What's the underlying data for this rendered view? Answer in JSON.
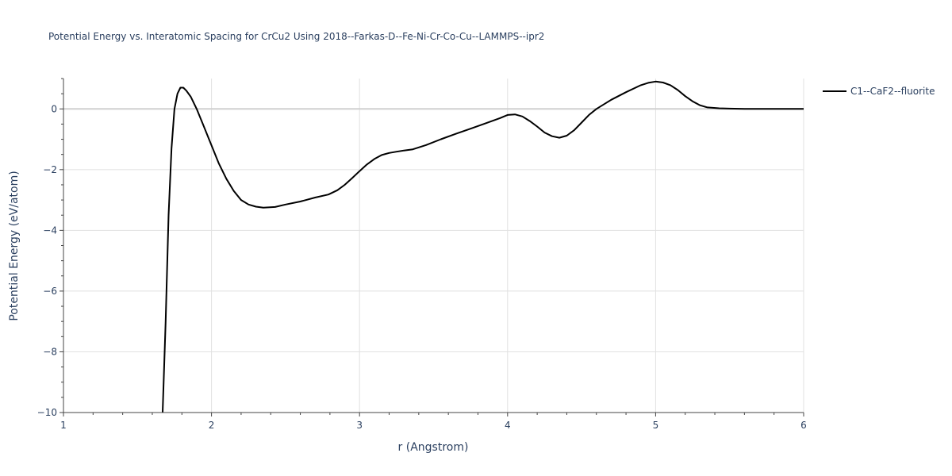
{
  "chart_data": {
    "type": "line",
    "title": "Potential Energy vs. Interatomic Spacing for CrCu2 Using 2018--Farkas-D--Fe-Ni-Cr-Co-Cu--LAMMPS--ipr2",
    "xlabel": "r (Angstrom)",
    "ylabel": "Potential Energy (eV/atom)",
    "xlim": [
      1,
      6
    ],
    "ylim": [
      -10,
      1
    ],
    "xticks": [
      1,
      2,
      3,
      4,
      5,
      6
    ],
    "xtick_labels": [
      "1",
      "2",
      "3",
      "4",
      "5",
      "6"
    ],
    "yticks": [
      -10,
      -8,
      -6,
      -4,
      -2,
      0
    ],
    "ytick_labels": [
      "−10",
      "−8",
      "−6",
      "−4",
      "−2",
      "0"
    ],
    "grid": true,
    "legend_position": "top-right",
    "series": [
      {
        "name": "C1--CaF2--fluorite",
        "color": "#000000",
        "x": [
          1.67,
          1.69,
          1.71,
          1.73,
          1.75,
          1.77,
          1.79,
          1.81,
          1.83,
          1.86,
          1.9,
          1.95,
          2.0,
          2.05,
          2.1,
          2.15,
          2.2,
          2.25,
          2.3,
          2.35,
          2.43,
          2.5,
          2.6,
          2.7,
          2.79,
          2.85,
          2.9,
          2.95,
          3.0,
          3.05,
          3.1,
          3.15,
          3.2,
          3.25,
          3.3,
          3.36,
          3.45,
          3.55,
          3.65,
          3.75,
          3.85,
          3.95,
          4.0,
          4.05,
          4.1,
          4.15,
          4.2,
          4.25,
          4.3,
          4.35,
          4.4,
          4.45,
          4.5,
          4.55,
          4.6,
          4.7,
          4.8,
          4.9,
          4.95,
          5.0,
          5.05,
          5.1,
          5.15,
          5.2,
          5.25,
          5.3,
          5.35,
          5.43,
          5.5,
          5.6,
          5.7,
          5.8,
          5.9,
          6.0
        ],
        "y": [
          -10.0,
          -7.0,
          -3.5,
          -1.3,
          0.0,
          0.5,
          0.7,
          0.7,
          0.6,
          0.4,
          0.0,
          -0.6,
          -1.2,
          -1.8,
          -2.3,
          -2.7,
          -3.0,
          -3.15,
          -3.22,
          -3.25,
          -3.23,
          -3.15,
          -3.05,
          -2.92,
          -2.82,
          -2.68,
          -2.5,
          -2.28,
          -2.05,
          -1.83,
          -1.65,
          -1.52,
          -1.45,
          -1.41,
          -1.37,
          -1.33,
          -1.19,
          -1.0,
          -0.82,
          -0.65,
          -0.48,
          -0.3,
          -0.2,
          -0.18,
          -0.25,
          -0.4,
          -0.58,
          -0.78,
          -0.9,
          -0.95,
          -0.88,
          -0.7,
          -0.45,
          -0.2,
          0.0,
          0.3,
          0.55,
          0.78,
          0.86,
          0.9,
          0.87,
          0.78,
          0.62,
          0.42,
          0.25,
          0.12,
          0.05,
          0.02,
          0.01,
          0.0,
          0.0,
          0.0,
          0.0,
          0.0
        ]
      }
    ]
  }
}
